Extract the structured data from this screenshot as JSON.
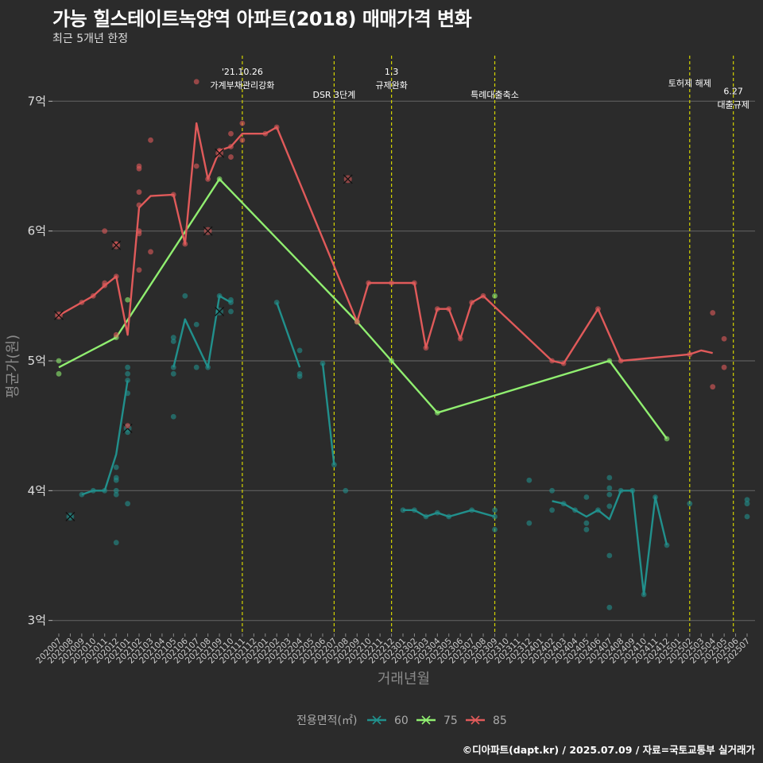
{
  "title": "가능 힐스테이트녹양역 아파트(2018) 매매가격 변화",
  "subtitle": "최근 5개년 한정",
  "caption": "©디아파트(dapt.kr) / 2025.07.09 / 자료=국토교통부 실거래가",
  "chart_data": {
    "type": "line",
    "xlabel": "거래년월",
    "ylabel": "평균가(원)",
    "x_start": "202007",
    "x_end": "202507",
    "ylim": [
      2.9,
      7.4
    ],
    "y_ticks": [
      3,
      4,
      5,
      6,
      7
    ],
    "y_tick_labels": [
      "3억",
      "4억",
      "5억",
      "6억",
      "7억"
    ],
    "x_ticks": [
      "202007",
      "202008",
      "202009",
      "202010",
      "202011",
      "202012",
      "202101",
      "202102",
      "202103",
      "202104",
      "202105",
      "202106",
      "202107",
      "202108",
      "202109",
      "202110",
      "202111",
      "202112",
      "202201",
      "202202",
      "202203",
      "202204",
      "202205",
      "202206",
      "202207",
      "202208",
      "202209",
      "202210",
      "202211",
      "202212",
      "202301",
      "202302",
      "202303",
      "202304",
      "202305",
      "202306",
      "202307",
      "202308",
      "202309",
      "202310",
      "202311",
      "202312",
      "202401",
      "202402",
      "202403",
      "202404",
      "202405",
      "202406",
      "202407",
      "202408",
      "202409",
      "202410",
      "202411",
      "202412",
      "202501",
      "202502",
      "202503",
      "202504",
      "202505",
      "202506",
      "202507"
    ],
    "grid": true,
    "legend_title": "전용면적(㎡)",
    "legend_position": "bottom",
    "events": [
      {
        "x": 2021.833,
        "label_lines": [
          "'21.10.26",
          "가계부채관리강화"
        ],
        "row": 0
      },
      {
        "x": 2022.5,
        "label_lines": [
          "DSR 3단계"
        ],
        "row": 2
      },
      {
        "x": 2022.917,
        "label_lines": [
          "1.3",
          "규제완화"
        ],
        "row": 0
      },
      {
        "x": 2023.667,
        "label_lines": [
          "특례대출축소"
        ],
        "row": 2
      },
      {
        "x": 2025.083,
        "label_lines": [
          "토허제 해제"
        ],
        "row": 1
      },
      {
        "x": 2025.4,
        "label_lines": [
          "6.27",
          "대출규제"
        ],
        "row": 1.7
      }
    ],
    "series": [
      {
        "name": "60",
        "color": "#21908c",
        "line_segments": [
          [
            [
              2020.667,
              3.97
            ],
            [
              2020.75,
              4.0
            ],
            [
              2020.833,
              4.0
            ],
            [
              2020.917,
              4.28
            ],
            [
              2021.0,
              4.85
            ]
          ],
          [
            [
              2021.333,
              4.95
            ],
            [
              2021.417,
              5.32
            ],
            [
              2021.583,
              4.95
            ],
            [
              2021.667,
              5.5
            ],
            [
              2021.75,
              5.45
            ]
          ],
          [
            [
              2022.083,
              5.45
            ],
            [
              2022.25,
              4.95
            ]
          ],
          [
            [
              2022.417,
              4.98
            ],
            [
              2022.5,
              4.2
            ]
          ],
          [
            [
              2023.0,
              3.85
            ],
            [
              2023.083,
              3.85
            ],
            [
              2023.167,
              3.8
            ],
            [
              2023.25,
              3.83
            ],
            [
              2023.333,
              3.8
            ],
            [
              2023.5,
              3.85
            ],
            [
              2023.667,
              3.8
            ]
          ],
          [
            [
              2024.083,
              3.92
            ],
            [
              2024.167,
              3.9
            ],
            [
              2024.25,
              3.85
            ],
            [
              2024.333,
              3.8
            ],
            [
              2024.417,
              3.85
            ],
            [
              2024.5,
              3.78
            ],
            [
              2024.583,
              4.0
            ],
            [
              2024.667,
              4.0
            ],
            [
              2024.75,
              3.2
            ],
            [
              2024.833,
              3.95
            ],
            [
              2024.917,
              3.58
            ]
          ]
        ],
        "points": [
          [
            2020.583,
            3.8
          ],
          [
            2020.667,
            3.97
          ],
          [
            2020.75,
            4.0
          ],
          [
            2020.833,
            4.0
          ],
          [
            2020.917,
            4.18
          ],
          [
            2020.917,
            4.1
          ],
          [
            2020.917,
            4.08
          ],
          [
            2020.917,
            4.0
          ],
          [
            2020.917,
            3.97
          ],
          [
            2020.917,
            3.6
          ],
          [
            2021.0,
            4.95
          ],
          [
            2021.0,
            4.9
          ],
          [
            2021.0,
            4.85
          ],
          [
            2021.0,
            4.75
          ],
          [
            2021.0,
            4.45
          ],
          [
            2021.0,
            3.9
          ],
          [
            2021.333,
            5.18
          ],
          [
            2021.333,
            5.15
          ],
          [
            2021.333,
            4.95
          ],
          [
            2021.333,
            4.9
          ],
          [
            2021.333,
            4.57
          ],
          [
            2021.417,
            5.5
          ],
          [
            2021.5,
            5.28
          ],
          [
            2021.5,
            4.95
          ],
          [
            2021.583,
            4.95
          ],
          [
            2021.667,
            5.5
          ],
          [
            2021.75,
            5.47
          ],
          [
            2021.75,
            5.45
          ],
          [
            2021.75,
            5.38
          ],
          [
            2022.083,
            5.45
          ],
          [
            2022.25,
            5.08
          ],
          [
            2022.25,
            4.9
          ],
          [
            2022.25,
            4.88
          ],
          [
            2022.417,
            4.98
          ],
          [
            2022.5,
            4.2
          ],
          [
            2022.583,
            4.0
          ],
          [
            2023.0,
            3.85
          ],
          [
            2023.083,
            3.85
          ],
          [
            2023.167,
            3.8
          ],
          [
            2023.25,
            3.83
          ],
          [
            2023.333,
            3.8
          ],
          [
            2023.5,
            3.85
          ],
          [
            2023.667,
            3.85
          ],
          [
            2023.667,
            3.8
          ],
          [
            2023.667,
            3.7
          ],
          [
            2023.917,
            4.08
          ],
          [
            2023.917,
            3.75
          ],
          [
            2024.083,
            4.0
          ],
          [
            2024.083,
            3.85
          ],
          [
            2024.167,
            3.9
          ],
          [
            2024.25,
            3.85
          ],
          [
            2024.333,
            3.95
          ],
          [
            2024.333,
            3.75
          ],
          [
            2024.333,
            3.7
          ],
          [
            2024.417,
            3.85
          ],
          [
            2024.5,
            4.1
          ],
          [
            2024.5,
            4.02
          ],
          [
            2024.5,
            3.97
          ],
          [
            2024.5,
            3.88
          ],
          [
            2024.5,
            3.5
          ],
          [
            2024.5,
            3.1
          ],
          [
            2024.583,
            4.0
          ],
          [
            2024.667,
            4.0
          ],
          [
            2024.75,
            3.2
          ],
          [
            2024.833,
            3.95
          ],
          [
            2024.917,
            3.58
          ],
          [
            2025.083,
            3.9
          ],
          [
            2025.5,
            3.93
          ],
          [
            2025.5,
            3.9
          ],
          [
            2025.5,
            3.8
          ]
        ],
        "crosses": [
          [
            2020.583,
            3.8
          ],
          [
            2021.0,
            4.48
          ],
          [
            2021.667,
            5.38
          ]
        ]
      },
      {
        "name": "75",
        "color": "#90ee70",
        "line_segments": [
          [
            [
              2020.5,
              4.95
            ],
            [
              2020.917,
              5.18
            ],
            [
              2021.667,
              6.4
            ],
            [
              2022.667,
              5.3
            ],
            [
              2022.917,
              5.0
            ],
            [
              2023.25,
              4.6
            ],
            [
              2024.5,
              5.0
            ],
            [
              2024.917,
              4.4
            ]
          ]
        ],
        "points": [
          [
            2020.5,
            5.0
          ],
          [
            2020.5,
            4.9
          ],
          [
            2020.917,
            5.18
          ],
          [
            2021.0,
            5.47
          ],
          [
            2021.667,
            6.4
          ],
          [
            2022.667,
            5.3
          ],
          [
            2022.917,
            5.0
          ],
          [
            2023.25,
            4.6
          ],
          [
            2023.667,
            5.5
          ],
          [
            2024.5,
            5.0
          ],
          [
            2024.917,
            4.4
          ]
        ],
        "crosses": []
      },
      {
        "name": "85",
        "color": "#e05a5a",
        "line_segments": [
          [
            [
              2020.5,
              5.35
            ],
            [
              2020.667,
              5.45
            ],
            [
              2020.75,
              5.5
            ],
            [
              2020.833,
              5.58
            ],
            [
              2020.917,
              5.65
            ],
            [
              2021.0,
              5.2
            ],
            [
              2021.083,
              6.18
            ],
            [
              2021.167,
              6.27
            ],
            [
              2021.333,
              6.28
            ],
            [
              2021.417,
              5.9
            ],
            [
              2021.5,
              6.83
            ],
            [
              2021.583,
              6.4
            ],
            [
              2021.667,
              6.62
            ],
            [
              2021.75,
              6.65
            ],
            [
              2021.833,
              6.75
            ],
            [
              2022.0,
              6.75
            ],
            [
              2022.083,
              6.8
            ],
            [
              2022.667,
              5.3
            ],
            [
              2022.75,
              5.6
            ],
            [
              2022.917,
              5.6
            ],
            [
              2023.083,
              5.6
            ],
            [
              2023.167,
              5.1
            ],
            [
              2023.25,
              5.4
            ],
            [
              2023.333,
              5.4
            ],
            [
              2023.417,
              5.17
            ],
            [
              2023.5,
              5.45
            ],
            [
              2023.583,
              5.5
            ],
            [
              2024.083,
              5.0
            ],
            [
              2024.167,
              4.98
            ],
            [
              2024.417,
              5.4
            ],
            [
              2024.583,
              5.0
            ],
            [
              2025.083,
              5.05
            ],
            [
              2025.167,
              5.08
            ],
            [
              2025.25,
              5.06
            ]
          ]
        ],
        "points": [
          [
            2020.5,
            5.35
          ],
          [
            2020.667,
            5.45
          ],
          [
            2020.75,
            5.5
          ],
          [
            2020.833,
            6.0
          ],
          [
            2020.833,
            5.6
          ],
          [
            2020.833,
            5.58
          ],
          [
            2020.917,
            5.65
          ],
          [
            2020.917,
            5.9
          ],
          [
            2020.917,
            5.2
          ],
          [
            2021.0,
            4.5
          ],
          [
            2021.083,
            6.5
          ],
          [
            2021.083,
            6.48
          ],
          [
            2021.083,
            6.3
          ],
          [
            2021.083,
            6.2
          ],
          [
            2021.083,
            6.0
          ],
          [
            2021.083,
            5.98
          ],
          [
            2021.083,
            5.7
          ],
          [
            2021.167,
            6.7
          ],
          [
            2021.167,
            5.84
          ],
          [
            2021.333,
            6.28
          ],
          [
            2021.417,
            5.9
          ],
          [
            2021.5,
            7.15
          ],
          [
            2021.5,
            6.5
          ],
          [
            2021.583,
            6.4
          ],
          [
            2021.667,
            6.62
          ],
          [
            2021.75,
            6.75
          ],
          [
            2021.75,
            6.65
          ],
          [
            2021.75,
            6.57
          ],
          [
            2021.833,
            6.83
          ],
          [
            2021.833,
            6.7
          ],
          [
            2022.0,
            6.75
          ],
          [
            2022.083,
            6.8
          ],
          [
            2022.667,
            5.3
          ],
          [
            2022.75,
            5.6
          ],
          [
            2022.917,
            5.6
          ],
          [
            2023.083,
            5.6
          ],
          [
            2023.167,
            5.1
          ],
          [
            2023.25,
            5.4
          ],
          [
            2023.333,
            5.4
          ],
          [
            2023.417,
            5.17
          ],
          [
            2023.5,
            5.45
          ],
          [
            2023.583,
            5.5
          ],
          [
            2024.083,
            5.0
          ],
          [
            2024.167,
            4.98
          ],
          [
            2024.417,
            5.4
          ],
          [
            2024.583,
            5.0
          ],
          [
            2025.083,
            5.05
          ],
          [
            2025.25,
            5.37
          ],
          [
            2025.25,
            4.8
          ],
          [
            2025.333,
            5.17
          ],
          [
            2025.333,
            4.95
          ]
        ],
        "crosses": [
          [
            2020.5,
            5.35
          ],
          [
            2020.917,
            5.89
          ],
          [
            2021.583,
            6.0
          ],
          [
            2021.667,
            6.6
          ],
          [
            2022.6,
            6.4
          ]
        ]
      }
    ]
  }
}
